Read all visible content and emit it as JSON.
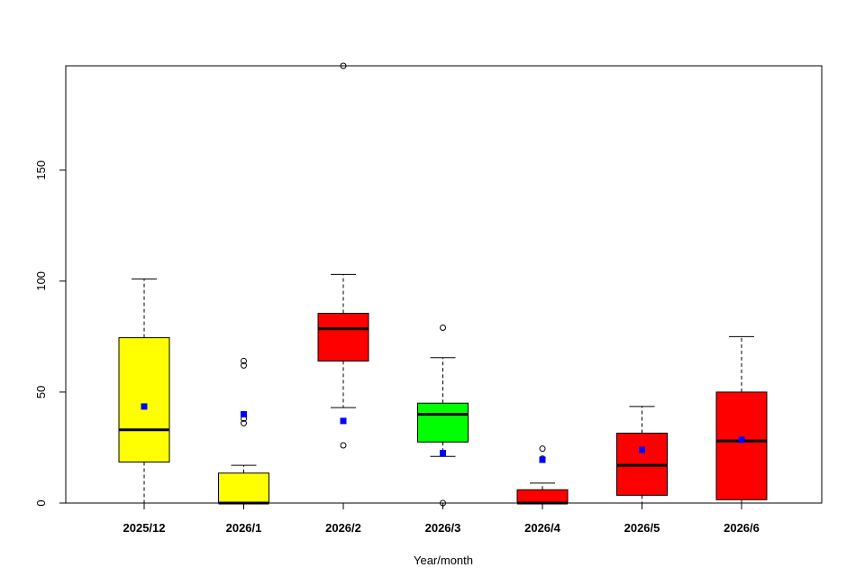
{
  "chart_data": {
    "type": "boxplot",
    "xlabel": "Year/month",
    "ylabel": "",
    "ylim": [
      0,
      197
    ],
    "yticks": [
      0,
      50,
      100,
      150
    ],
    "grid": false,
    "legend": "none",
    "mean_marker_color": "#0000ff",
    "categories": [
      "2025/12",
      "2026/1",
      "2026/2",
      "2026/3",
      "2026/4",
      "2026/5",
      "2026/6"
    ],
    "boxes": [
      {
        "category": "2025/12",
        "color": "#ffff00",
        "whisker_low": 0,
        "q1": 18.5,
        "median": 33,
        "q3": 74.5,
        "whisker_high": 101,
        "mean": 43.5,
        "outliers": []
      },
      {
        "category": "2026/1",
        "color": "#ffff00",
        "whisker_low": 0,
        "q1": 0,
        "median": 0,
        "q3": 13.5,
        "whisker_high": 17,
        "mean": 40,
        "outliers": [
          36,
          38,
          62,
          64
        ]
      },
      {
        "category": "2026/2",
        "color": "#ff0000",
        "whisker_low": 43,
        "q1": 64,
        "median": 78.5,
        "q3": 85.5,
        "whisker_high": 103,
        "mean": 37,
        "outliers": [
          26,
          197
        ]
      },
      {
        "category": "2026/3",
        "color": "#00ff00",
        "whisker_low": 21,
        "q1": 27.5,
        "median": 40,
        "q3": 45,
        "whisker_high": 65.5,
        "mean": 22.5,
        "outliers": [
          0,
          79
        ]
      },
      {
        "category": "2026/4",
        "color": "#ff0000",
        "whisker_low": 0,
        "q1": 0,
        "median": 0,
        "q3": 6,
        "whisker_high": 9,
        "mean": 19.5,
        "outliers": [
          20,
          24.5
        ]
      },
      {
        "category": "2026/5",
        "color": "#ff0000",
        "whisker_low": 0,
        "q1": 3.5,
        "median": 17,
        "q3": 31.5,
        "whisker_high": 43.5,
        "mean": 24,
        "outliers": []
      },
      {
        "category": "2026/6",
        "color": "#ff0000",
        "whisker_low": 0,
        "q1": 1.5,
        "median": 28,
        "q3": 50,
        "whisker_high": 75,
        "mean": 28.5,
        "outliers": []
      }
    ]
  }
}
